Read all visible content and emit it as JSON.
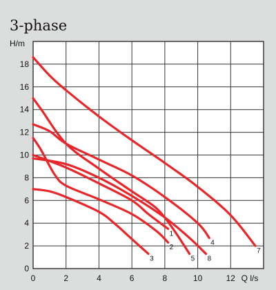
{
  "chart_data": {
    "type": "line",
    "title": "3-phase",
    "ylabel": "H/m",
    "xlabel": "Q l/s",
    "xlim": [
      0,
      14
    ],
    "ylim": [
      0,
      20
    ],
    "x_ticks": [
      "0",
      "2",
      "4",
      "6",
      "8",
      "10",
      "12"
    ],
    "y_ticks": [
      "0",
      "2",
      "4",
      "6",
      "8",
      "10",
      "12",
      "14",
      "16",
      "18"
    ],
    "grid": true,
    "line_color": "#e8262a",
    "series": [
      {
        "name": "1",
        "points": [
          [
            0,
            10.0
          ],
          [
            2,
            8.9
          ],
          [
            4,
            7.5
          ],
          [
            6,
            6.0
          ],
          [
            7,
            4.8
          ],
          [
            8.2,
            3.5
          ]
        ]
      },
      {
        "name": "2",
        "points": [
          [
            0,
            11.5
          ],
          [
            0.5,
            10.4
          ],
          [
            1.3,
            8.3
          ],
          [
            2,
            7.3
          ],
          [
            4,
            6.1
          ],
          [
            6,
            4.8
          ],
          [
            7.5,
            3.3
          ],
          [
            8.2,
            2.3
          ]
        ]
      },
      {
        "name": "3",
        "points": [
          [
            0,
            7.0
          ],
          [
            1,
            6.8
          ],
          [
            2,
            6.3
          ],
          [
            4,
            5.0
          ],
          [
            5,
            3.9
          ],
          [
            6,
            2.6
          ],
          [
            7,
            1.3
          ]
        ]
      },
      {
        "name": "4",
        "points": [
          [
            0,
            12.7
          ],
          [
            1,
            12.1
          ],
          [
            2,
            11.0
          ],
          [
            4,
            9.6
          ],
          [
            6,
            8.2
          ],
          [
            8,
            6.3
          ],
          [
            10,
            4.0
          ],
          [
            10.7,
            2.7
          ]
        ]
      },
      {
        "name": "5",
        "points": [
          [
            0,
            15.0
          ],
          [
            0.5,
            14.0
          ],
          [
            2,
            11.0
          ],
          [
            4,
            8.8
          ],
          [
            6,
            6.8
          ],
          [
            7.5,
            5.3
          ],
          [
            8.5,
            3.5
          ],
          [
            9.5,
            1.3
          ]
        ]
      },
      {
        "name": "7",
        "points": [
          [
            0,
            18.6
          ],
          [
            1,
            17.0
          ],
          [
            2,
            15.7
          ],
          [
            4,
            13.4
          ],
          [
            6,
            11.3
          ],
          [
            8,
            9.3
          ],
          [
            10,
            7.2
          ],
          [
            12,
            4.7
          ],
          [
            13.5,
            2.0
          ]
        ]
      },
      {
        "name": "8",
        "points": [
          [
            0,
            9.7
          ],
          [
            2,
            9.2
          ],
          [
            4,
            8.0
          ],
          [
            6,
            6.4
          ],
          [
            8,
            4.5
          ],
          [
            9.5,
            2.7
          ],
          [
            10.5,
            1.3
          ]
        ]
      }
    ]
  }
}
